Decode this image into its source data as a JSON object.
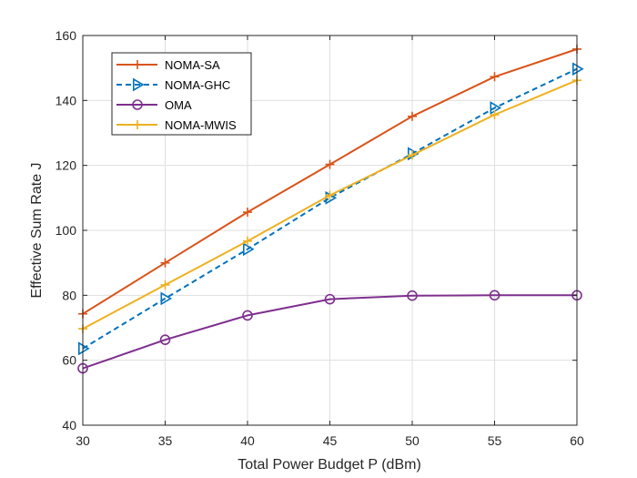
{
  "chart_data": {
    "type": "line",
    "title": "",
    "xlabel": "Total Power Budget P (dBm)",
    "ylabel": "Effective Sum Rate J",
    "xlim": [
      30,
      60
    ],
    "ylim": [
      40,
      160
    ],
    "x": [
      30,
      35,
      40,
      45,
      50,
      55,
      60
    ],
    "xticks": [
      30,
      35,
      40,
      45,
      50,
      55,
      60
    ],
    "yticks": [
      40,
      60,
      80,
      100,
      120,
      140,
      160
    ],
    "xtick_labels": [
      "30",
      "35",
      "40",
      "45",
      "50",
      "55",
      "60"
    ],
    "ytick_labels": [
      "40",
      "60",
      "80",
      "100",
      "120",
      "140",
      "160"
    ],
    "grid": true,
    "legend_position": "top-left",
    "series": [
      {
        "name": "NOMA-SA",
        "color": "#D95319",
        "dash": "solid",
        "marker": "plus",
        "values": [
          74.3,
          90.0,
          105.6,
          120.3,
          135.1,
          147.3,
          155.8
        ]
      },
      {
        "name": "NOMA-GHC",
        "color": "#0072BD",
        "dash": "dashed",
        "marker": "triangle",
        "values": [
          63.6,
          79.0,
          94.2,
          110.0,
          123.6,
          137.7,
          149.7
        ]
      },
      {
        "name": "OMA",
        "color": "#7E2F8E",
        "dash": "solid",
        "marker": "circle",
        "values": [
          57.5,
          66.3,
          73.8,
          78.8,
          79.9,
          80.0,
          80.0
        ]
      },
      {
        "name": "NOMA-MWIS",
        "color": "#EDB120",
        "dash": "solid",
        "marker": "plus",
        "values": [
          69.7,
          83.2,
          96.7,
          110.8,
          123.2,
          135.6,
          146.2
        ]
      }
    ]
  }
}
